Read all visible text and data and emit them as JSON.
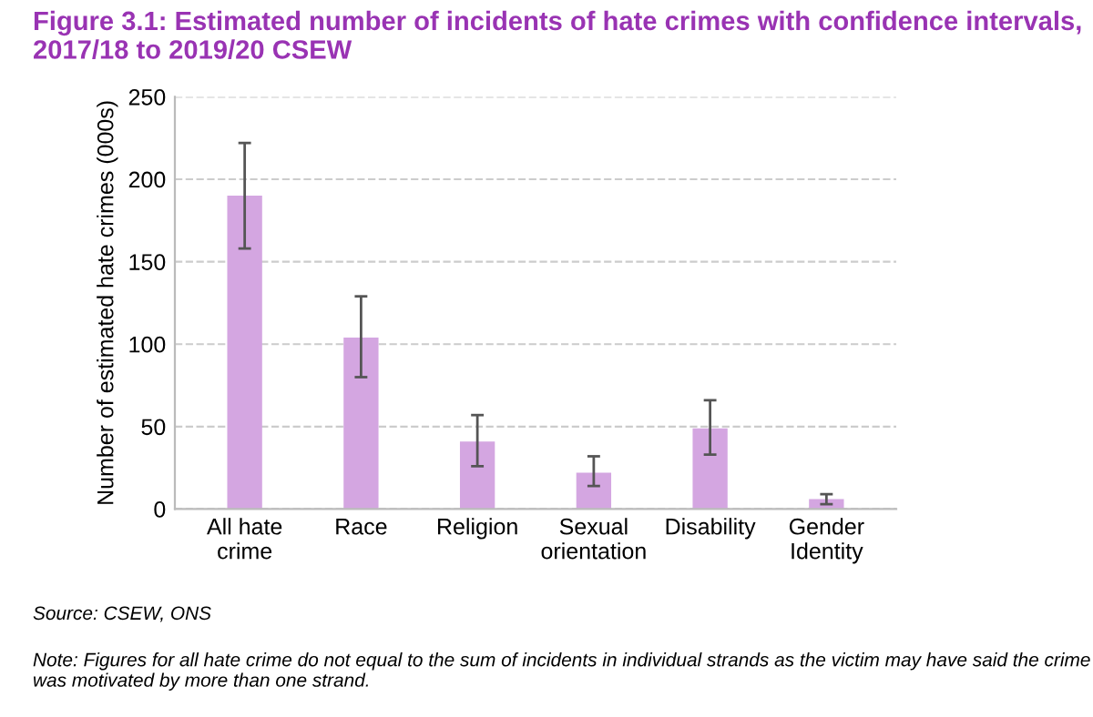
{
  "chart_data": {
    "type": "bar",
    "title": "Figure 3.1: Estimated number of incidents of hate crimes with confidence intervals, 2017/18 to 2019/20 CSEW",
    "ylabel": "Number of estimated hate crimes (000s)",
    "categories": [
      "All hate\ncrime",
      "Race",
      "Religion",
      "Sexual\norientation",
      "Disability",
      "Gender\nIdentity"
    ],
    "values": [
      190,
      104,
      41,
      22,
      49,
      6
    ],
    "errors": [
      [
        158,
        222
      ],
      [
        80,
        129
      ],
      [
        26,
        57
      ],
      [
        14,
        32
      ],
      [
        33,
        66
      ],
      [
        3,
        9
      ]
    ],
    "color": "#d4a6e1",
    "ylim": [
      0,
      250
    ],
    "yticks": [
      0,
      50,
      100,
      150,
      200,
      250
    ],
    "grid": "y",
    "annotations": [
      "Source: CSEW, ONS",
      "Note: Figures for all hate crime do not equal to the sum of incidents in individual strands as the victim may have said the crime was motivated by more than one strand."
    ]
  }
}
